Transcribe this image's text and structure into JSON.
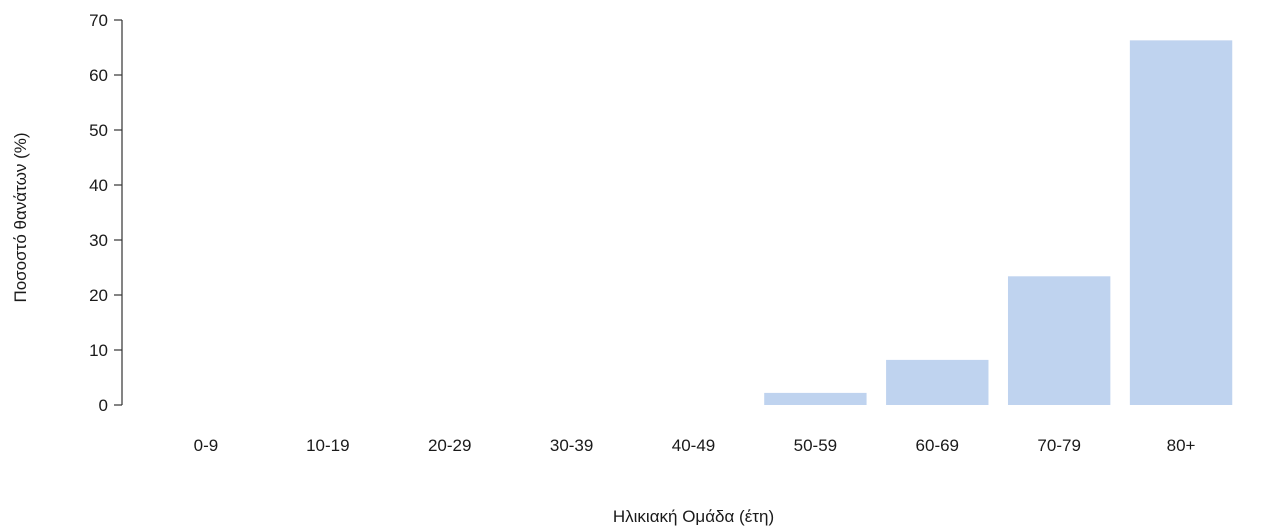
{
  "chart_data": {
    "type": "bar",
    "categories": [
      "0-9",
      "10-19",
      "20-29",
      "30-39",
      "40-49",
      "50-59",
      "60-69",
      "70-79",
      "80+"
    ],
    "values": [
      0,
      0,
      0,
      0,
      0,
      2.2,
      8.2,
      23.4,
      66.3
    ],
    "xlabel": "Ηλικιακή Ομάδα (έτη)",
    "ylabel": "Ποσοστό θανάτων (%)",
    "ylim": [
      0,
      70
    ],
    "yticks": [
      "0",
      "10",
      "20",
      "30",
      "40",
      "50",
      "60",
      "70"
    ],
    "bar_color": "#bfd3ef",
    "grid": false
  }
}
